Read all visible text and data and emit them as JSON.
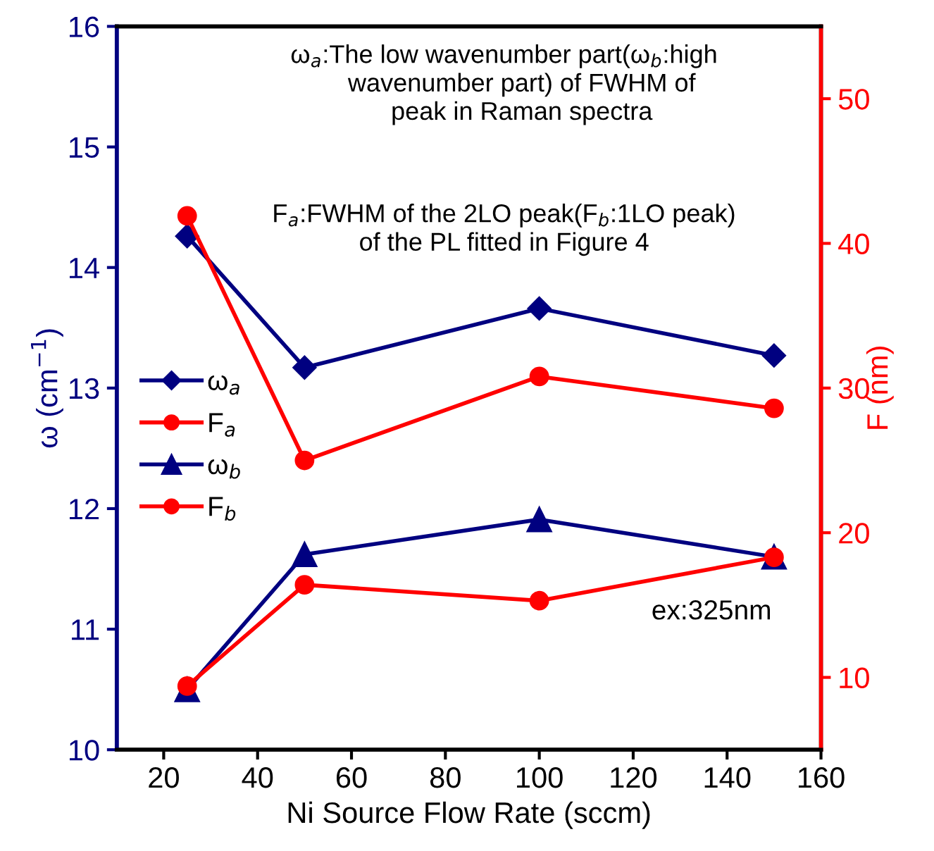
{
  "chart_data": {
    "type": "line",
    "xlabel": "Ni Source Flow Rate (sccm)",
    "ylabel": "ω (cm$^{−1}$)",
    "y2label": "F (nm)",
    "x": [
      25,
      50,
      100,
      150
    ],
    "xlim": [
      10,
      160
    ],
    "xticks": [
      20,
      40,
      60,
      80,
      100,
      120,
      140,
      160
    ],
    "ylim": [
      10,
      16
    ],
    "yticks": [
      10,
      11,
      12,
      13,
      14,
      15,
      16
    ],
    "y2lim": [
      5,
      55
    ],
    "y2ticks": [
      10,
      20,
      30,
      40,
      50
    ],
    "series": [
      {
        "name": "ω$_{a}$",
        "color": "#000080",
        "marker": "diamond",
        "values": [
          14.26,
          13.17,
          13.66,
          13.27
        ]
      },
      {
        "name": "F$_{a}$",
        "color": "#ff0000",
        "marker": "circle",
        "axis": "y2",
        "values": [
          41.9,
          25.0,
          30.8,
          28.6
        ]
      },
      {
        "name": "ω$_{b}$",
        "color": "#000080",
        "marker": "triangle",
        "values": [
          10.5,
          11.62,
          11.91,
          11.6
        ]
      },
      {
        "name": "F$_{b}$",
        "color": "#ff0000",
        "marker": "circle",
        "axis": "y2",
        "values": [
          9.4,
          16.4,
          15.3,
          18.3
        ]
      }
    ],
    "annotations": [
      "ω$_{a}$:The low wavenumber part(ω$_{b}$:high\n     wavenumber part) of FWHM of\n     peak in Raman spectra",
      "F$_{a}$:FWHM of the 2LO peak(F$_{b}$:1LO peak)\nof the PL fitted in Figure 4",
      "ex:325nm"
    ],
    "legend": "center left",
    "grid": false,
    "line_style": "solid"
  }
}
